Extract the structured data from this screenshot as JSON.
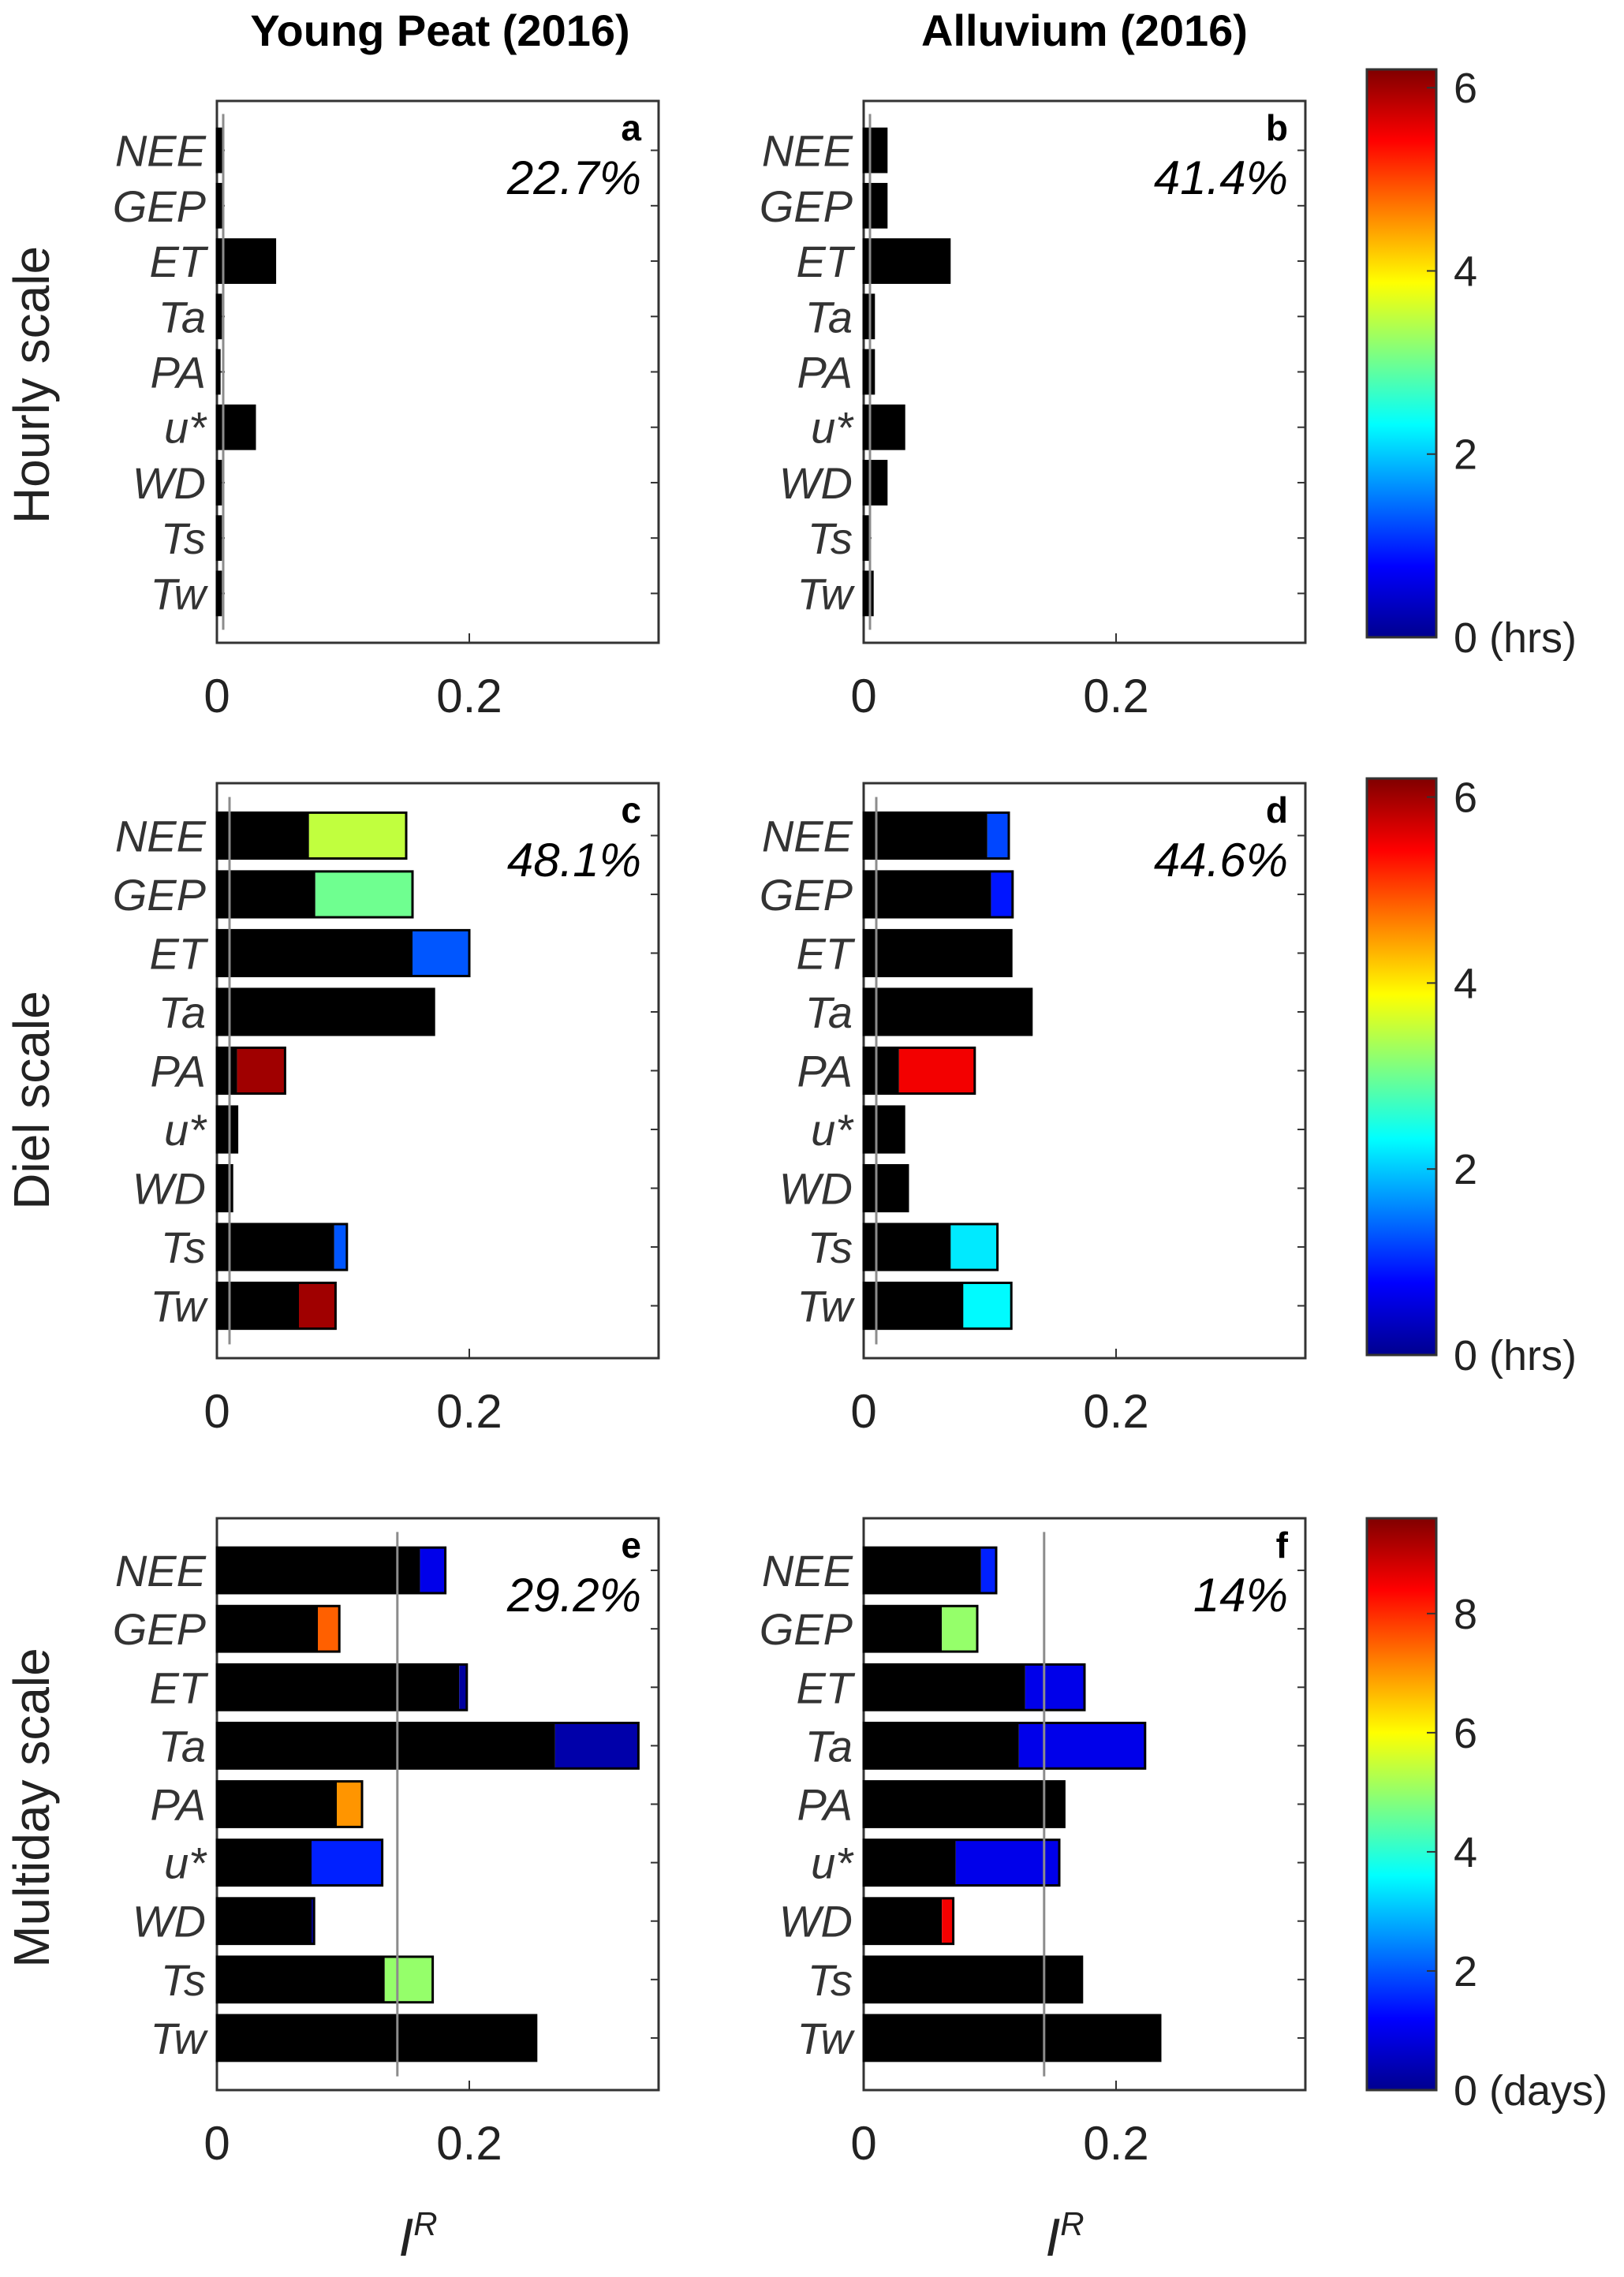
{
  "column_titles": [
    "Young Peat (2016)",
    "Alluvium (2016)"
  ],
  "row_labels": [
    "Hourly scale",
    "Diel scale",
    "Multiday scale"
  ],
  "xlabel": "I",
  "xlabel_sup": "R",
  "chart_data": [
    {
      "id": "a",
      "type": "bar",
      "orientation": "horizontal",
      "stacked": true,
      "site": "Young Peat (2016)",
      "scale": "Hourly scale",
      "percent": "22.7%",
      "categories": [
        "NEE",
        "GEP",
        "ET",
        "Ta",
        "PA",
        "u*",
        "WD",
        "Ts",
        "Tw"
      ],
      "black_segment": [
        0.004,
        0.004,
        0.046,
        0.003,
        0.002,
        0.03,
        0.003,
        0.003,
        0.003
      ],
      "colored_segment": [
        0,
        0,
        0,
        0,
        0,
        0,
        0,
        0,
        0
      ],
      "lag": [
        0,
        0,
        0,
        0,
        0,
        0,
        0,
        0,
        0
      ],
      "lag_unit": "hrs",
      "threshold": 0.005,
      "xlim": [
        0,
        0.35
      ],
      "xticks": [
        0,
        0.2
      ]
    },
    {
      "id": "b",
      "type": "bar",
      "orientation": "horizontal",
      "stacked": true,
      "site": "Alluvium (2016)",
      "scale": "Hourly scale",
      "percent": "41.4%",
      "categories": [
        "NEE",
        "GEP",
        "ET",
        "Ta",
        "PA",
        "u*",
        "WD",
        "Ts",
        "Tw"
      ],
      "black_segment": [
        0.018,
        0.018,
        0.068,
        0.008,
        0.008,
        0.032,
        0.018,
        0.005,
        0.007
      ],
      "colored_segment": [
        0,
        0,
        0,
        0,
        0,
        0,
        0,
        0,
        0
      ],
      "lag": [
        0,
        0,
        0,
        0,
        0,
        0,
        0,
        0,
        0
      ],
      "lag_unit": "hrs",
      "threshold": 0.005,
      "xlim": [
        0,
        0.35
      ],
      "xticks": [
        0,
        0.2
      ]
    },
    {
      "id": "c",
      "type": "bar",
      "orientation": "horizontal",
      "stacked": true,
      "site": "Young Peat (2016)",
      "scale": "Diel scale",
      "percent": "48.1%",
      "categories": [
        "NEE",
        "GEP",
        "ET",
        "Ta",
        "PA",
        "u*",
        "WD",
        "Ts",
        "Tw"
      ],
      "black_segment": [
        0.073,
        0.078,
        0.155,
        0.172,
        0.016,
        0.016,
        0.012,
        0.093,
        0.065
      ],
      "colored_segment": [
        0.077,
        0.077,
        0.045,
        0,
        0.038,
        0,
        0,
        0.01,
        0.029
      ],
      "lag": [
        3.5,
        3.0,
        1.3,
        0,
        6.0,
        0,
        0,
        1.3,
        6.0
      ],
      "lag_unit": "hrs",
      "threshold": 0.01,
      "xlim": [
        0,
        0.35
      ],
      "xticks": [
        0,
        0.2
      ]
    },
    {
      "id": "d",
      "type": "bar",
      "orientation": "horizontal",
      "stacked": true,
      "site": "Alluvium (2016)",
      "scale": "Diel scale",
      "percent": "44.6%",
      "categories": [
        "NEE",
        "GEP",
        "ET",
        "Ta",
        "PA",
        "u*",
        "WD",
        "Ts",
        "Tw"
      ],
      "black_segment": [
        0.098,
        0.101,
        0.117,
        0.133,
        0.028,
        0.032,
        0.035,
        0.069,
        0.079
      ],
      "colored_segment": [
        0.017,
        0.017,
        0,
        0,
        0.06,
        0,
        0,
        0.037,
        0.038
      ],
      "lag": [
        1.2,
        0.9,
        0,
        0,
        5.5,
        0,
        0,
        2.2,
        2.3
      ],
      "lag_unit": "hrs",
      "threshold": 0.01,
      "xlim": [
        0,
        0.35
      ],
      "xticks": [
        0,
        0.2
      ]
    },
    {
      "id": "e",
      "type": "bar",
      "orientation": "horizontal",
      "stacked": true,
      "site": "Young Peat (2016)",
      "scale": "Multiday scale",
      "percent": "29.2%",
      "categories": [
        "NEE",
        "GEP",
        "ET",
        "Ta",
        "PA",
        "u*",
        "WD",
        "Ts",
        "Tw"
      ],
      "black_segment": [
        0.161,
        0.08,
        0.192,
        0.268,
        0.095,
        0.075,
        0.075,
        0.133,
        0.253
      ],
      "colored_segment": [
        0.02,
        0.017,
        0.006,
        0.066,
        0.02,
        0.056,
        0.002,
        0.038,
        0
      ],
      "lag": [
        1.0,
        7.5,
        0.3,
        0.4,
        7.0,
        1.5,
        0.3,
        5.0,
        0
      ],
      "lag_unit": "days",
      "threshold": 0.143,
      "xlim": [
        0,
        0.35
      ],
      "xticks": [
        0,
        0.2
      ]
    },
    {
      "id": "f",
      "type": "bar",
      "orientation": "horizontal",
      "stacked": true,
      "site": "Alluvium (2016)",
      "scale": "Multiday scale",
      "percent": "14%",
      "categories": [
        "NEE",
        "GEP",
        "ET",
        "Ta",
        "PA",
        "u*",
        "WD",
        "Ts",
        "Tw"
      ],
      "black_segment": [
        0.093,
        0.062,
        0.128,
        0.123,
        0.159,
        0.073,
        0.062,
        0.173,
        0.235
      ],
      "colored_segment": [
        0.012,
        0.028,
        0.047,
        0.1,
        0,
        0.082,
        0.009,
        0,
        0
      ],
      "lag": [
        1.5,
        5.0,
        1.0,
        1.0,
        0,
        1.0,
        8.5,
        0,
        0
      ],
      "lag_unit": "days",
      "threshold": 0.143,
      "xlim": [
        0,
        0.35
      ],
      "xticks": [
        0,
        0.2
      ]
    }
  ],
  "colorbars": [
    {
      "row": "Hourly scale",
      "min": 0,
      "max": 6.2,
      "ticks": [
        6,
        4,
        2,
        0
      ],
      "unit_label": "(hrs)",
      "colormap": "jet"
    },
    {
      "row": "Diel scale",
      "min": 0,
      "max": 6.2,
      "ticks": [
        6,
        4,
        2,
        0
      ],
      "unit_label": "(hrs)",
      "colormap": "jet"
    },
    {
      "row": "Multiday scale",
      "min": 0,
      "max": 9.6,
      "ticks": [
        8,
        6,
        4,
        2,
        0
      ],
      "unit_label": "(days)",
      "colormap": "jet"
    }
  ],
  "colors": {
    "bar_black": "#000000",
    "threshold_line": "#8c8c8c",
    "axes": "#333333"
  }
}
